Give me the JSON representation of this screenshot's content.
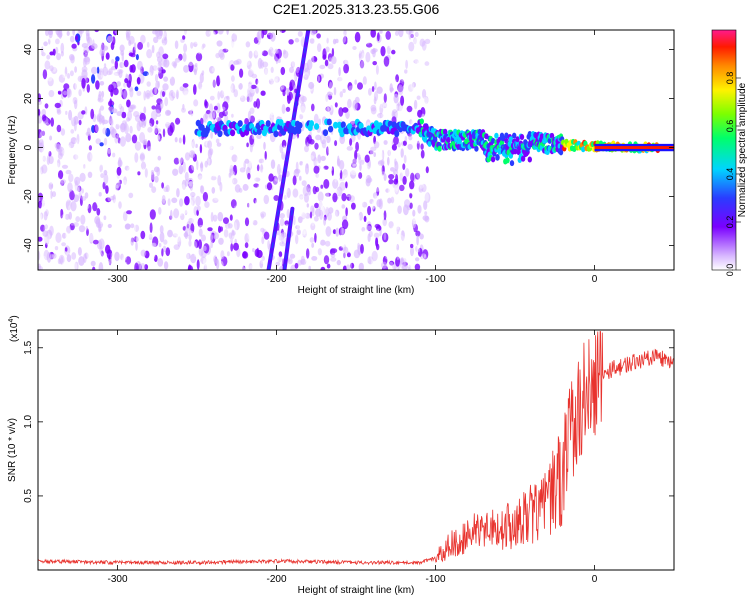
{
  "title": "C2E1.2025.313.23.55.G06",
  "chart_data": [
    {
      "type": "heatmap",
      "xlabel": "Height of straight line (km)",
      "ylabel": "Frequency (Hz)",
      "xlim": [
        -350,
        50
      ],
      "ylim": [
        -50,
        48
      ],
      "xticks": [
        -300,
        -200,
        -100,
        0
      ],
      "xtick_labels": [
        "-300",
        "-200",
        "-100",
        "0"
      ],
      "yticks": [
        -40,
        -20,
        0,
        20,
        40
      ],
      "ytick_labels": [
        "-40",
        "-20",
        "0",
        "20",
        "40"
      ],
      "colorbar": {
        "label": "Normalized spectral amplitude",
        "range": [
          0,
          1
        ],
        "ticks": [
          0.0,
          0.2,
          0.4,
          0.6,
          0.8
        ],
        "tick_labels": [
          "0.0",
          "0.2",
          "0.4",
          "0.6",
          "0.8"
        ]
      },
      "features": {
        "noise_region_x": [
          -350,
          -105
        ],
        "signal_band": [
          {
            "x": -250,
            "y": 8
          },
          {
            "x": -200,
            "y": 8
          },
          {
            "x": -110,
            "y": 8
          },
          {
            "x": -100,
            "y": 3
          },
          {
            "x": -50,
            "y": 3
          },
          {
            "x": -20,
            "y": 1
          },
          {
            "x": 0,
            "y": 0.5
          },
          {
            "x": 50,
            "y": 0
          }
        ],
        "diagonal_streaks": [
          {
            "x_start": -205,
            "y_start": -50,
            "x_end": -180,
            "y_end": 48
          },
          {
            "x_start": -195,
            "y_start": -50,
            "x_end": -190,
            "y_end": -25
          }
        ]
      }
    },
    {
      "type": "line",
      "xlabel": "Height of straight line (km)",
      "ylabel": "SNR (10 * v/v)",
      "y_multiplier": "(x10",
      "y_multiplier_exp": "4",
      "y_multiplier_close": ")",
      "xlim": [
        -350,
        50
      ],
      "ylim": [
        0,
        1.62
      ],
      "xticks": [
        -300,
        -200,
        -100,
        0
      ],
      "xtick_labels": [
        "-300",
        "-200",
        "-100",
        "0"
      ],
      "yticks": [
        0.5,
        1.0,
        1.5
      ],
      "ytick_labels": [
        "0.5",
        "1.0",
        "1.5"
      ],
      "series": [
        {
          "name": "SNR",
          "color": "#e8332e",
          "x": [
            -350,
            -300,
            -250,
            -200,
            -150,
            -110,
            -100,
            -90,
            -70,
            -50,
            -30,
            -20,
            -15,
            -10,
            -5,
            0,
            5,
            10,
            20,
            30,
            40,
            50
          ],
          "y": [
            0.06,
            0.05,
            0.05,
            0.06,
            0.05,
            0.05,
            0.08,
            0.18,
            0.28,
            0.3,
            0.45,
            0.65,
            0.9,
            1.1,
            1.2,
            1.25,
            1.3,
            1.35,
            1.38,
            1.42,
            1.43,
            1.4
          ]
        }
      ]
    }
  ]
}
